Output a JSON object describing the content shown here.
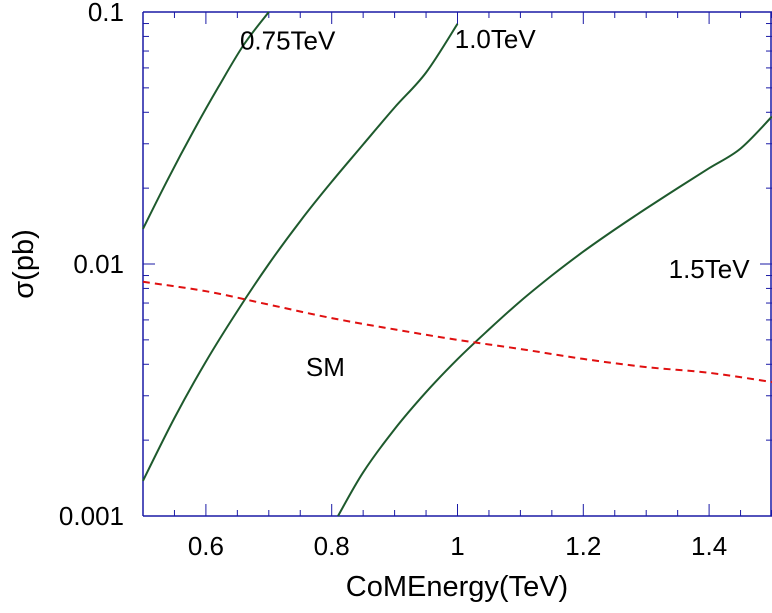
{
  "chart_data": {
    "type": "line",
    "title": "",
    "xlabel": "CoMEnergy(TeV)",
    "ylabel": "σ(pb)",
    "xlim": [
      0.5,
      1.5
    ],
    "ylim": [
      0.001,
      0.1
    ],
    "yscale": "log",
    "grid": false,
    "legend": "none",
    "x_ticks": [
      {
        "value": 0.6,
        "label": "0.6"
      },
      {
        "value": 0.8,
        "label": "0.8"
      },
      {
        "value": 1.0,
        "label": "1"
      },
      {
        "value": 1.2,
        "label": "1.2"
      },
      {
        "value": 1.4,
        "label": "1.4"
      }
    ],
    "y_ticks": [
      {
        "value": 0.001,
        "label": "0.001"
      },
      {
        "value": 0.01,
        "label": "0.01"
      },
      {
        "value": 0.1,
        "label": "0.1"
      }
    ],
    "series": [
      {
        "label": "0.75TeV",
        "color": "#1e5a2d",
        "dash": "solid",
        "x": [
          0.5,
          0.54,
          0.58,
          0.62,
          0.66,
          0.7
        ],
        "y": [
          0.0138,
          0.0218,
          0.0336,
          0.0505,
          0.074,
          0.1
        ]
      },
      {
        "label": "1.0TeV",
        "color": "#1e5a2d",
        "dash": "solid",
        "x": [
          0.5,
          0.55,
          0.6,
          0.65,
          0.7,
          0.75,
          0.8,
          0.85,
          0.9,
          0.95,
          1.0
        ],
        "y": [
          0.00138,
          0.00245,
          0.0041,
          0.00651,
          0.01,
          0.0148,
          0.0212,
          0.0298,
          0.0418,
          0.0575,
          0.0898
        ]
      },
      {
        "label": "1.5TeV",
        "color": "#1e5a2d",
        "dash": "solid",
        "x": [
          0.81,
          0.85,
          0.9,
          0.95,
          1.0,
          1.05,
          1.1,
          1.15,
          1.2,
          1.25,
          1.3,
          1.35,
          1.4,
          1.45,
          1.5
        ],
        "y": [
          0.001,
          0.00149,
          0.00221,
          0.0031,
          0.00419,
          0.0055,
          0.00712,
          0.009,
          0.0112,
          0.0137,
          0.0166,
          0.02,
          0.024,
          0.0287,
          0.0385
        ]
      },
      {
        "label": "SM",
        "color": "#e01010",
        "dash": "dashed",
        "x": [
          0.5,
          0.6,
          0.7,
          0.8,
          0.9,
          1.0,
          1.1,
          1.2,
          1.3,
          1.4,
          1.5
        ],
        "y": [
          0.0085,
          0.0078,
          0.0069,
          0.0061,
          0.0055,
          0.005,
          0.0046,
          0.0042,
          0.0039,
          0.0037,
          0.0034
        ]
      }
    ],
    "annotations": [
      {
        "text": "0.75TeV",
        "x": 0.73,
        "y": 0.071
      },
      {
        "text": "1.0TeV",
        "x": 1.06,
        "y": 0.072
      },
      {
        "text": "1.5TeV",
        "x": 1.4,
        "y": 0.0088
      },
      {
        "text": "SM",
        "x": 0.79,
        "y": 0.0036
      }
    ]
  }
}
